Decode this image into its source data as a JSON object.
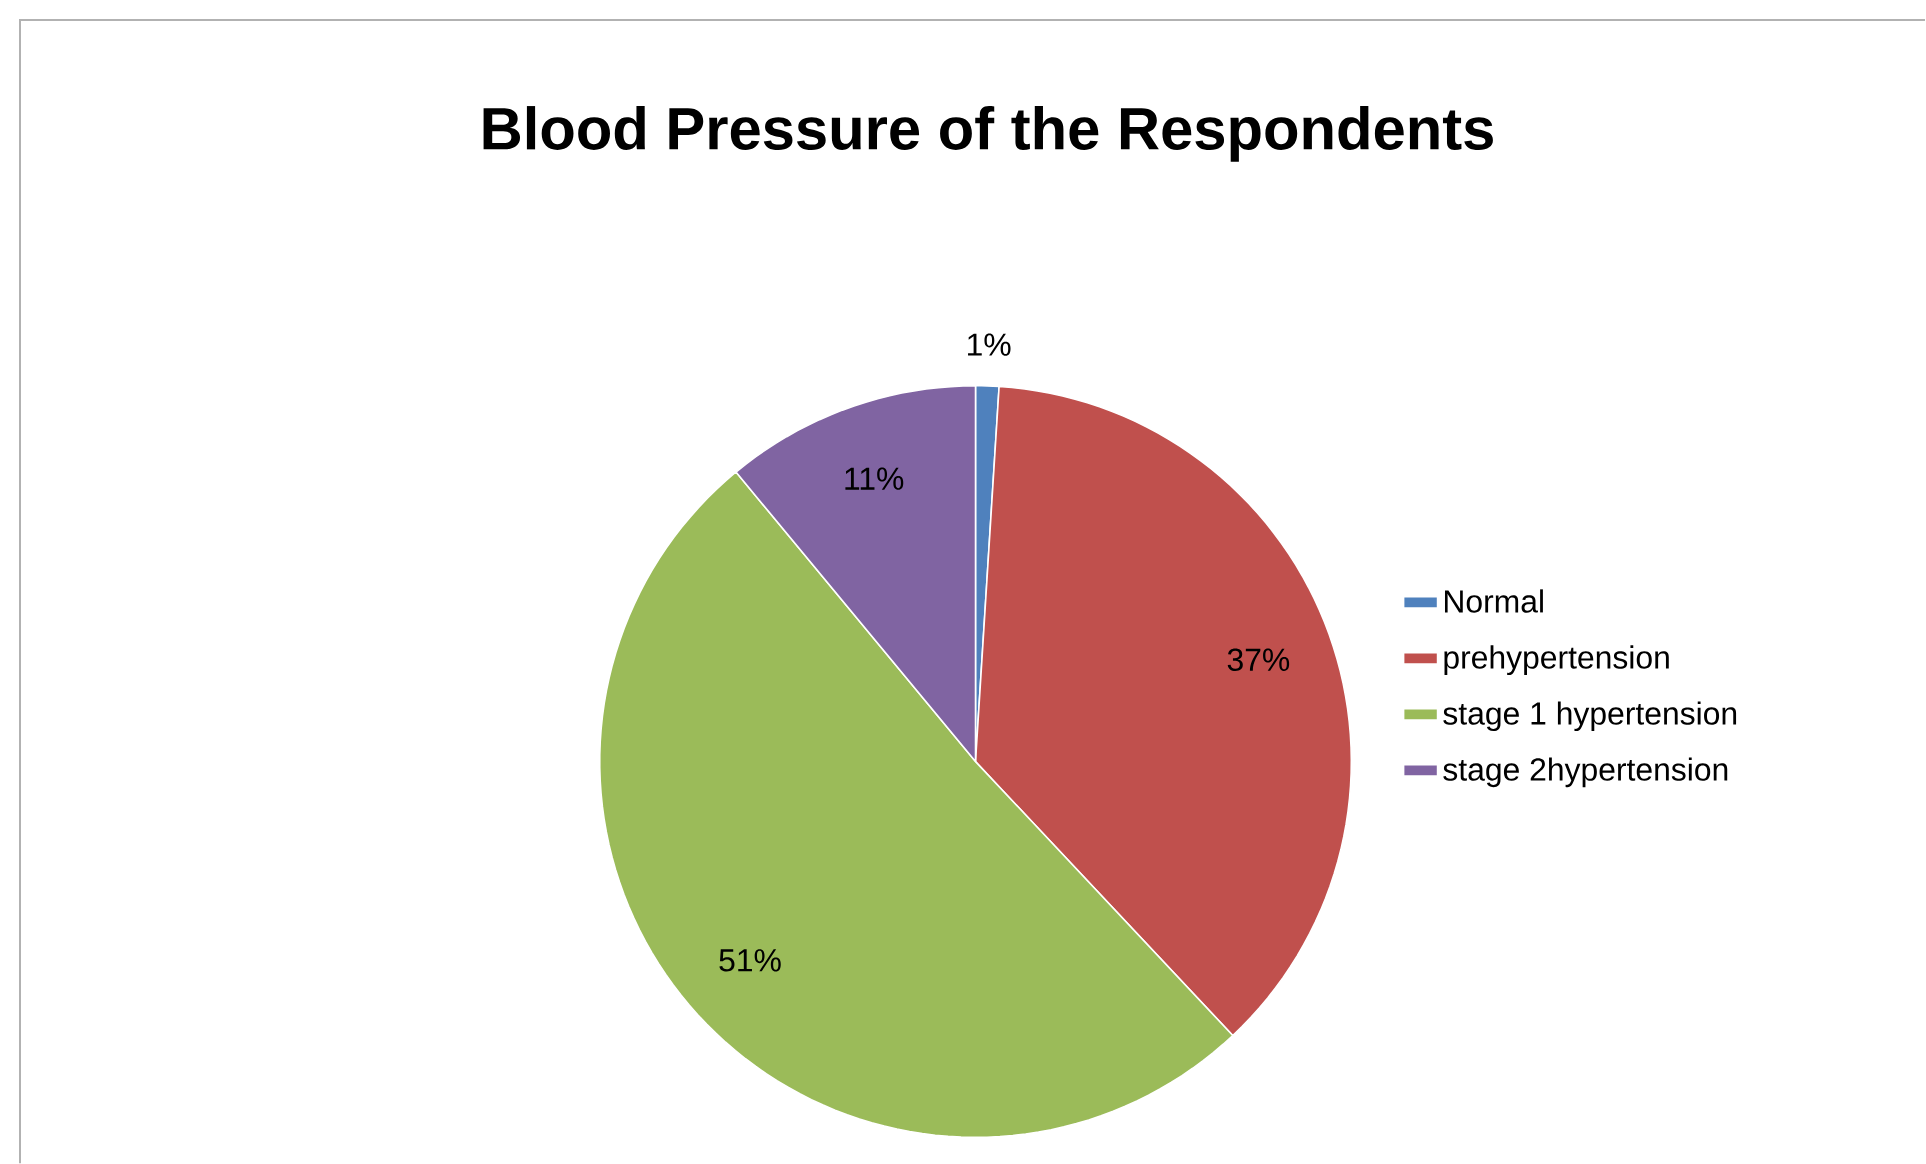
{
  "chart_data": {
    "type": "pie",
    "title": "Blood Pressure of the Respondents",
    "categories": [
      "Normal",
      "prehypertension",
      "stage 1 hypertension",
      "stage 2hypertension"
    ],
    "values": [
      1,
      37,
      51,
      11
    ],
    "colors": [
      "#4f81bd",
      "#c0504d",
      "#9bbb59",
      "#8064a2"
    ],
    "value_labels": [
      "1%",
      "37%",
      "51%",
      "11%"
    ],
    "legend": "right"
  }
}
